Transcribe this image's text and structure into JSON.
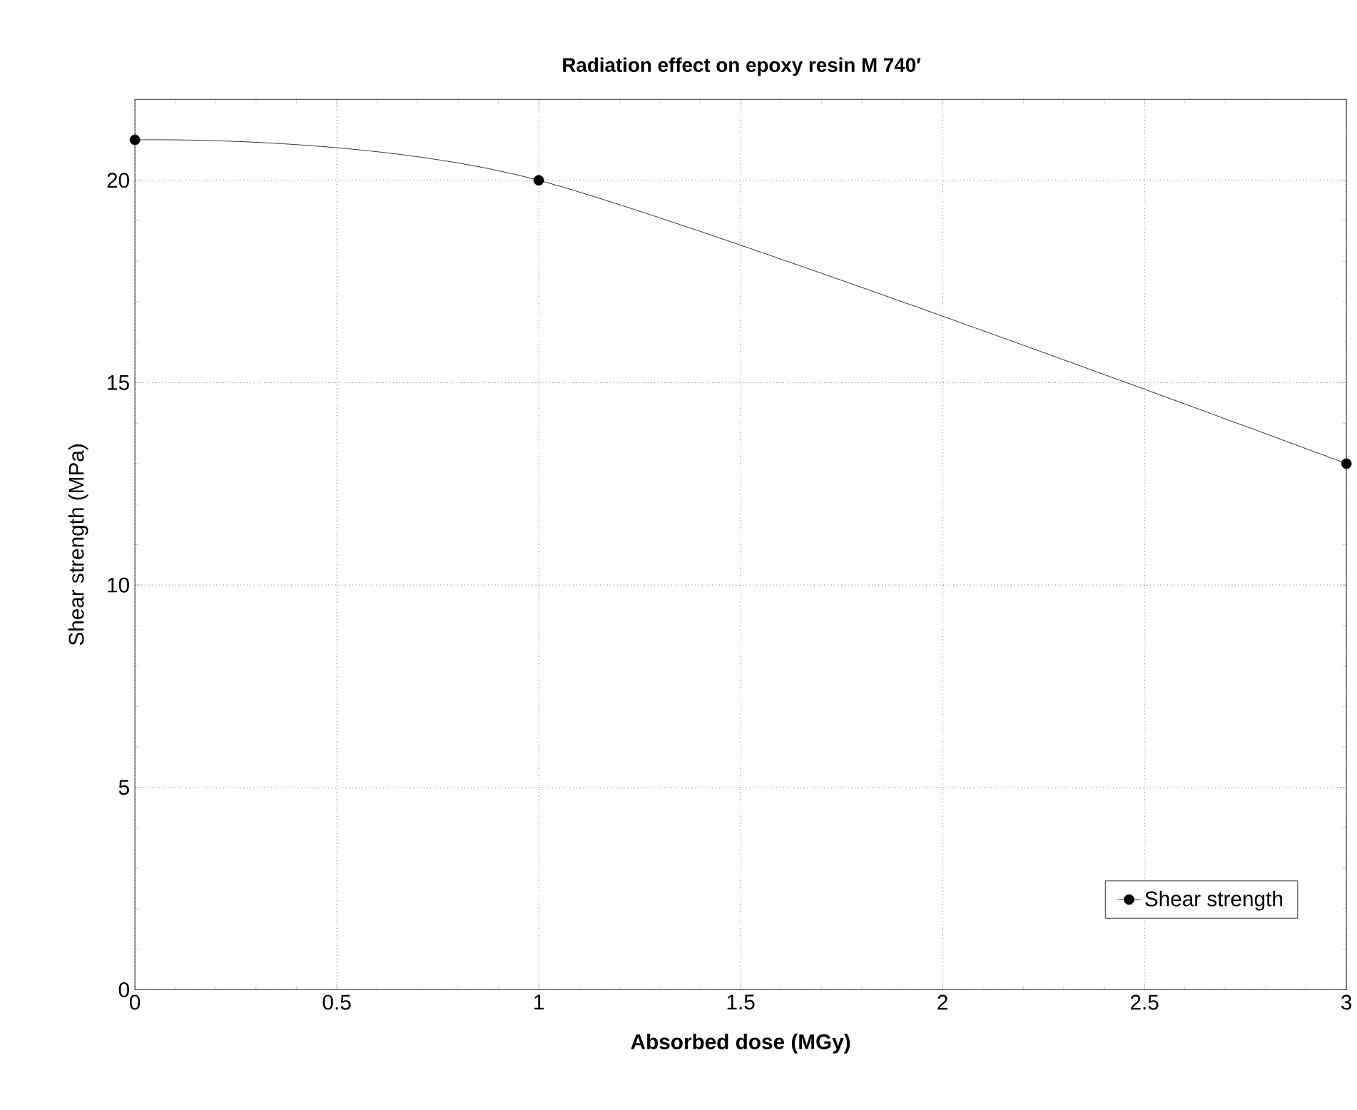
{
  "chart_data": {
    "type": "line",
    "title": "Radiation effect on epoxy resin M 740′",
    "xlabel": "Absorbed dose (MGy)",
    "ylabel": "Shear strength (MPa)",
    "x": [
      0,
      1,
      3
    ],
    "series": [
      {
        "name": "Shear strength",
        "color": "#000000",
        "values": [
          21,
          20,
          13
        ]
      }
    ],
    "xlim": [
      0,
      3
    ],
    "ylim": [
      0,
      22
    ],
    "xticks": [
      0,
      0.5,
      1,
      1.5,
      2,
      2.5,
      3
    ],
    "yticks": [
      0,
      5,
      10,
      15,
      20
    ],
    "grid": true,
    "legend": "bottom right",
    "marker": "circle",
    "line_style": "solid"
  }
}
